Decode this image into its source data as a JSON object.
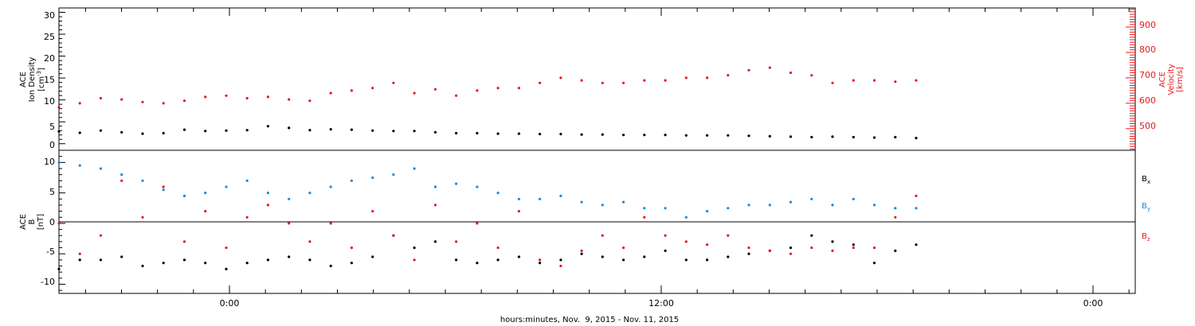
{
  "chart_data": [
    {
      "type": "scatter",
      "panel": "ion-density-velocity",
      "ylabel_left": [
        "ACE",
        "Ion Density",
        "[cm",
        "-3",
        "]"
      ],
      "ylabel_right": [
        "ACE",
        "Velocity",
        "[km/s]"
      ],
      "ylim_left": [
        -1.5,
        31
      ],
      "ylim_right": [
        415,
        975
      ],
      "left_ticks": [
        "0",
        "5",
        "10",
        "15",
        "20",
        "25",
        "30"
      ],
      "right_ticks": [
        "500",
        "600",
        "700",
        "800",
        "900"
      ],
      "colors": {
        "density": "#000000",
        "velocity": "#e41a1c"
      },
      "series": [
        {
          "key": "density",
          "axis": "left",
          "x": [
            0,
            1,
            2,
            3,
            4,
            5,
            6,
            7,
            8,
            9,
            10,
            11,
            12,
            13,
            14,
            15,
            16,
            17,
            18,
            19,
            20,
            21,
            22,
            23,
            24,
            25,
            26,
            27,
            28,
            29,
            30,
            31,
            32,
            33,
            34,
            35,
            36,
            37,
            38,
            39,
            40,
            41
          ],
          "values": [
            2.8,
            2.5,
            3.0,
            2.6,
            2.3,
            2.4,
            3.2,
            2.9,
            3.0,
            3.1,
            4.0,
            3.6,
            3.1,
            3.3,
            3.2,
            3.0,
            2.9,
            2.9,
            2.6,
            2.4,
            2.4,
            2.3,
            2.3,
            2.2,
            2.2,
            2.1,
            2.1,
            2.0,
            2.0,
            2.0,
            1.9,
            1.9,
            1.9,
            1.8,
            1.7,
            1.6,
            1.5,
            1.6,
            1.5,
            1.4,
            1.5,
            1.3
          ]
        },
        {
          "key": "velocity",
          "axis": "right",
          "x": [
            0,
            1,
            2,
            3,
            4,
            5,
            6,
            7,
            8,
            9,
            10,
            11,
            12,
            13,
            14,
            15,
            16,
            17,
            18,
            19,
            20,
            21,
            22,
            23,
            24,
            25,
            26,
            27,
            28,
            29,
            30,
            31,
            32,
            33,
            34,
            35,
            36,
            37,
            38,
            39,
            40,
            41
          ],
          "values": [
            585,
            600,
            620,
            615,
            605,
            600,
            610,
            625,
            630,
            620,
            625,
            615,
            610,
            640,
            650,
            660,
            680,
            640,
            655,
            630,
            650,
            660,
            660,
            680,
            700,
            690,
            680,
            680,
            690,
            690,
            700,
            700,
            710,
            730,
            740,
            720,
            710,
            680,
            690,
            690,
            685,
            690
          ]
        }
      ]
    },
    {
      "type": "scatter",
      "panel": "magnetic-field",
      "ylabel": [
        "ACE",
        "B",
        "[nT]"
      ],
      "ylim": [
        -11.5,
        12
      ],
      "y_ticks": [
        "10",
        "5",
        "0",
        "-5",
        "-10"
      ],
      "colors": {
        "bx": "#000000",
        "by": "#1f88d8",
        "bz": "#e41a1c"
      },
      "legend": [
        {
          "key": "bx",
          "label": "B",
          "sub": "x"
        },
        {
          "key": "by",
          "label": "B",
          "sub": "y"
        },
        {
          "key": "bz",
          "label": "B",
          "sub": "z"
        }
      ],
      "series": [
        {
          "key": "bx",
          "x": [
            0,
            1,
            2,
            3,
            4,
            5,
            6,
            7,
            8,
            9,
            10,
            11,
            12,
            13,
            14,
            15,
            16,
            17,
            18,
            19,
            20,
            21,
            22,
            23,
            24,
            25,
            26,
            27,
            28,
            29,
            30,
            31,
            32,
            33,
            34,
            35,
            36,
            37,
            38,
            39,
            40,
            41
          ],
          "values": [
            -7.5,
            -6.0,
            -6.0,
            -5.5,
            -7.0,
            -6.5,
            -6.0,
            -6.5,
            -7.5,
            -6.5,
            -6.0,
            -5.5,
            -6.0,
            -7.0,
            -6.5,
            -5.5,
            -2.0,
            -4.0,
            -3.0,
            -6.0,
            -6.5,
            -6.0,
            -5.5,
            -6.5,
            -6.0,
            -5.0,
            -5.5,
            -6.0,
            -5.5,
            -4.5,
            -6.0,
            -6.0,
            -5.5,
            -5.0,
            -4.5,
            -4.0,
            -2.0,
            -3.0,
            -3.5,
            -6.5,
            -4.5,
            -3.5
          ]
        },
        {
          "key": "by",
          "x": [
            0,
            1,
            2,
            3,
            4,
            5,
            6,
            7,
            8,
            9,
            10,
            11,
            12,
            13,
            14,
            15,
            16,
            17,
            18,
            19,
            20,
            21,
            22,
            23,
            24,
            25,
            26,
            27,
            28,
            29,
            30,
            31,
            32,
            33,
            34,
            35,
            36,
            37,
            38,
            39,
            40,
            41
          ],
          "values": [
            10.0,
            9.5,
            9.0,
            8.0,
            7.0,
            5.5,
            4.5,
            5.0,
            6.0,
            7.0,
            5.0,
            4.0,
            5.0,
            6.0,
            7.0,
            7.5,
            8.0,
            9.0,
            6.0,
            6.5,
            6.0,
            5.0,
            4.0,
            4.0,
            4.5,
            3.5,
            3.0,
            3.5,
            2.5,
            2.5,
            1.0,
            2.0,
            2.5,
            3.0,
            3.0,
            3.5,
            4.0,
            3.0,
            4.0,
            3.0,
            2.5,
            2.5
          ]
        },
        {
          "key": "bz",
          "x": [
            0,
            1,
            2,
            3,
            4,
            5,
            6,
            7,
            8,
            9,
            10,
            11,
            12,
            13,
            14,
            15,
            16,
            17,
            18,
            19,
            20,
            21,
            22,
            23,
            24,
            25,
            26,
            27,
            28,
            29,
            30,
            31,
            32,
            33,
            34,
            35,
            36,
            37,
            38,
            39,
            40,
            41
          ],
          "values": [
            0.0,
            -5.0,
            -2.0,
            7.0,
            1.0,
            6.0,
            -3.0,
            2.0,
            -4.0,
            1.0,
            3.0,
            0.0,
            -3.0,
            0.0,
            -4.0,
            2.0,
            -2.0,
            -6.0,
            3.0,
            -3.0,
            0.0,
            -4.0,
            2.0,
            -6.0,
            -7.0,
            -4.5,
            -2.0,
            -4.0,
            1.0,
            -2.0,
            -3.0,
            -3.5,
            -2.0,
            -4.0,
            -4.5,
            -5.0,
            -4.0,
            -4.5,
            -4.0,
            -4.0,
            1.0,
            4.5
          ]
        }
      ]
    }
  ],
  "x_axis": {
    "tick_labels": [
      "0:00",
      "12:00",
      "0:00"
    ],
    "xlabel": "hours:minutes, Nov.  9, 2015 - Nov. 11, 2015"
  }
}
